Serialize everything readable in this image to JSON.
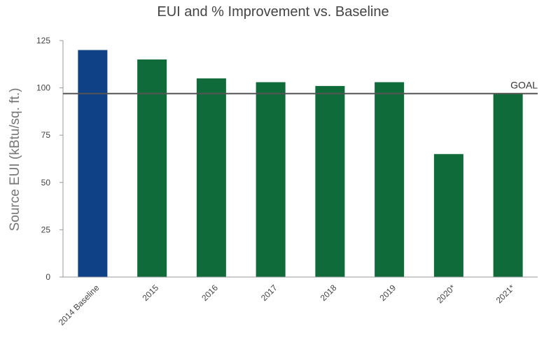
{
  "chart_data": {
    "type": "bar",
    "title": "EUI and % Improvement vs. Baseline",
    "xlabel": "",
    "ylabel": "Source EUI (kBtu/sq. ft.)",
    "categories": [
      "2014 Baseline",
      "2015",
      "2016",
      "2017",
      "2018",
      "2019",
      "2020*",
      "2021*"
    ],
    "values": [
      120,
      115,
      105,
      103,
      101,
      103,
      65,
      97
    ],
    "ylim": [
      0,
      125
    ],
    "yticks": [
      0,
      25,
      50,
      75,
      100,
      125
    ],
    "goal": {
      "label": "GOAL",
      "value": 97
    },
    "colors": {
      "baseline_bar": "#0e4186",
      "bar": "#0f6b3a",
      "goal_line": "#555555",
      "axis": "#999999"
    },
    "grid": false,
    "legend": "none"
  }
}
